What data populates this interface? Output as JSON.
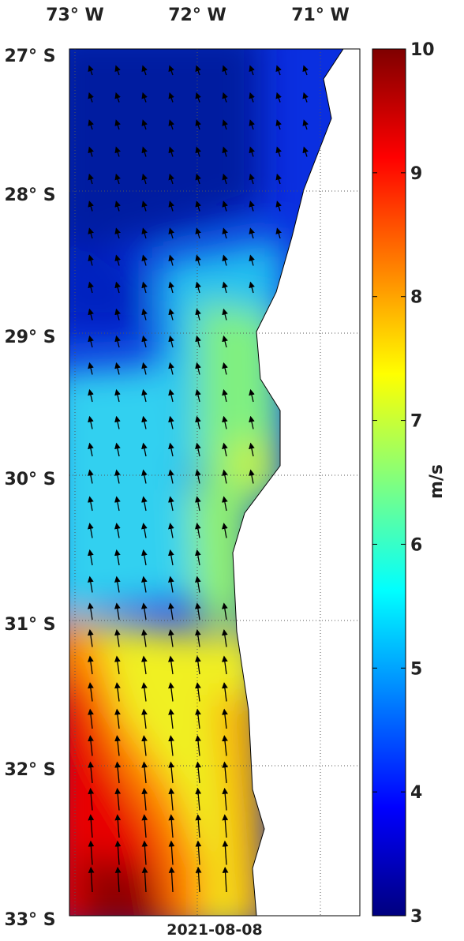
{
  "map": {
    "lon_labels": [
      "73° W",
      "72° W",
      "71° W"
    ],
    "lat_labels": [
      "27° S",
      "28° S",
      "29° S",
      "30° S",
      "31° S",
      "32° S",
      "33° S"
    ],
    "date": "2021-08-08",
    "colorbar": {
      "label": "m/s",
      "lim": [
        3,
        10
      ],
      "ticks": [
        3,
        4,
        5,
        6,
        7,
        8,
        9,
        10
      ]
    }
  }
}
